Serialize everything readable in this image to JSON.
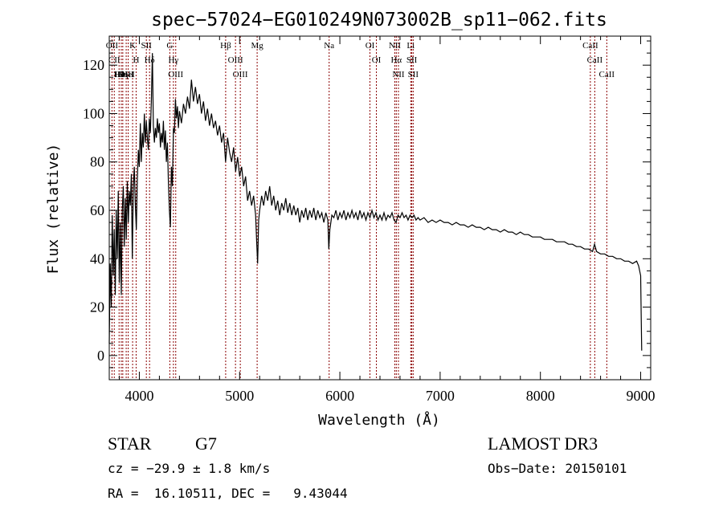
{
  "chart_data": {
    "type": "line",
    "title": "spec−57024−EG010249N073002B_sp11−062.fits",
    "xlabel": "Wavelength (Å)",
    "ylabel": "Flux (relative)",
    "xlim": [
      3700,
      9100
    ],
    "ylim": [
      -10,
      132
    ],
    "xticks": [
      4000,
      5000,
      6000,
      7000,
      8000,
      9000
    ],
    "yticks": [
      0,
      20,
      40,
      60,
      80,
      100,
      120
    ],
    "series": [
      {
        "points": [
          [
            3700,
            5
          ],
          [
            3710,
            38
          ],
          [
            3720,
            20
          ],
          [
            3730,
            58
          ],
          [
            3740,
            33
          ],
          [
            3750,
            52
          ],
          [
            3760,
            25
          ],
          [
            3770,
            60
          ],
          [
            3780,
            40
          ],
          [
            3790,
            68
          ],
          [
            3800,
            30
          ],
          [
            3810,
            55
          ],
          [
            3820,
            25
          ],
          [
            3830,
            60
          ],
          [
            3840,
            70
          ],
          [
            3850,
            45
          ],
          [
            3860,
            65
          ],
          [
            3870,
            48
          ],
          [
            3880,
            72
          ],
          [
            3890,
            55
          ],
          [
            3900,
            68
          ],
          [
            3910,
            62
          ],
          [
            3920,
            75
          ],
          [
            3930,
            40
          ],
          [
            3940,
            70
          ],
          [
            3950,
            78
          ],
          [
            3960,
            62
          ],
          [
            3970,
            52
          ],
          [
            3980,
            72
          ],
          [
            3990,
            85
          ],
          [
            4000,
            78
          ],
          [
            4010,
            96
          ],
          [
            4020,
            80
          ],
          [
            4030,
            92
          ],
          [
            4040,
            86
          ],
          [
            4050,
            100
          ],
          [
            4060,
            88
          ],
          [
            4070,
            97
          ],
          [
            4080,
            90
          ],
          [
            4090,
            85
          ],
          [
            4100,
            98
          ],
          [
            4110,
            92
          ],
          [
            4120,
            105
          ],
          [
            4130,
            125
          ],
          [
            4140,
            95
          ],
          [
            4150,
            88
          ],
          [
            4160,
            94
          ],
          [
            4170,
            90
          ],
          [
            4180,
            98
          ],
          [
            4190,
            92
          ],
          [
            4200,
            96
          ],
          [
            4210,
            86
          ],
          [
            4220,
            92
          ],
          [
            4230,
            88
          ],
          [
            4240,
            97
          ],
          [
            4250,
            85
          ],
          [
            4260,
            93
          ],
          [
            4270,
            80
          ],
          [
            4280,
            88
          ],
          [
            4290,
            72
          ],
          [
            4300,
            60
          ],
          [
            4310,
            53
          ],
          [
            4320,
            78
          ],
          [
            4330,
            70
          ],
          [
            4340,
            94
          ],
          [
            4350,
            92
          ],
          [
            4360,
            106
          ],
          [
            4370,
            98
          ],
          [
            4380,
            103
          ],
          [
            4390,
            94
          ],
          [
            4400,
            101
          ],
          [
            4420,
            96
          ],
          [
            4440,
            104
          ],
          [
            4460,
            100
          ],
          [
            4480,
            107
          ],
          [
            4500,
            102
          ],
          [
            4520,
            114
          ],
          [
            4540,
            105
          ],
          [
            4560,
            111
          ],
          [
            4580,
            104
          ],
          [
            4600,
            108
          ],
          [
            4620,
            100
          ],
          [
            4640,
            105
          ],
          [
            4660,
            97
          ],
          [
            4680,
            102
          ],
          [
            4700,
            95
          ],
          [
            4720,
            100
          ],
          [
            4740,
            94
          ],
          [
            4760,
            97
          ],
          [
            4780,
            91
          ],
          [
            4800,
            95
          ],
          [
            4820,
            88
          ],
          [
            4840,
            92
          ],
          [
            4860,
            80
          ],
          [
            4880,
            90
          ],
          [
            4900,
            84
          ],
          [
            4920,
            80
          ],
          [
            4940,
            86
          ],
          [
            4960,
            76
          ],
          [
            4980,
            82
          ],
          [
            5000,
            74
          ],
          [
            5020,
            78
          ],
          [
            5040,
            70
          ],
          [
            5060,
            74
          ],
          [
            5080,
            64
          ],
          [
            5100,
            68
          ],
          [
            5120,
            62
          ],
          [
            5140,
            66
          ],
          [
            5160,
            58
          ],
          [
            5170,
            47
          ],
          [
            5180,
            38
          ],
          [
            5190,
            56
          ],
          [
            5200,
            60
          ],
          [
            5220,
            66
          ],
          [
            5240,
            62
          ],
          [
            5260,
            68
          ],
          [
            5280,
            64
          ],
          [
            5300,
            70
          ],
          [
            5320,
            62
          ],
          [
            5340,
            66
          ],
          [
            5360,
            60
          ],
          [
            5380,
            64
          ],
          [
            5400,
            58
          ],
          [
            5420,
            63
          ],
          [
            5440,
            60
          ],
          [
            5460,
            65
          ],
          [
            5480,
            59
          ],
          [
            5500,
            63
          ],
          [
            5520,
            58
          ],
          [
            5540,
            62
          ],
          [
            5560,
            58
          ],
          [
            5580,
            61
          ],
          [
            5600,
            55
          ],
          [
            5620,
            60
          ],
          [
            5640,
            57
          ],
          [
            5660,
            61
          ],
          [
            5680,
            56
          ],
          [
            5700,
            60
          ],
          [
            5720,
            57
          ],
          [
            5740,
            61
          ],
          [
            5760,
            56
          ],
          [
            5780,
            60
          ],
          [
            5800,
            57
          ],
          [
            5820,
            59
          ],
          [
            5840,
            55
          ],
          [
            5860,
            59
          ],
          [
            5880,
            56
          ],
          [
            5890,
            44
          ],
          [
            5900,
            52
          ],
          [
            5920,
            58
          ],
          [
            5940,
            57
          ],
          [
            5960,
            60
          ],
          [
            5980,
            56
          ],
          [
            6000,
            59
          ],
          [
            6020,
            57
          ],
          [
            6040,
            60
          ],
          [
            6060,
            56
          ],
          [
            6080,
            59
          ],
          [
            6100,
            57
          ],
          [
            6120,
            60
          ],
          [
            6140,
            57
          ],
          [
            6160,
            59
          ],
          [
            6180,
            56
          ],
          [
            6200,
            60
          ],
          [
            6220,
            57
          ],
          [
            6240,
            59
          ],
          [
            6260,
            56
          ],
          [
            6280,
            59
          ],
          [
            6300,
            57
          ],
          [
            6320,
            60
          ],
          [
            6340,
            57
          ],
          [
            6360,
            59
          ],
          [
            6380,
            56
          ],
          [
            6400,
            58
          ],
          [
            6420,
            56
          ],
          [
            6440,
            59
          ],
          [
            6460,
            56
          ],
          [
            6480,
            58
          ],
          [
            6500,
            57
          ],
          [
            6520,
            59
          ],
          [
            6540,
            56
          ],
          [
            6560,
            55
          ],
          [
            6580,
            58
          ],
          [
            6600,
            57
          ],
          [
            6620,
            59
          ],
          [
            6640,
            57
          ],
          [
            6660,
            58
          ],
          [
            6680,
            56
          ],
          [
            6700,
            58
          ],
          [
            6720,
            57
          ],
          [
            6740,
            58
          ],
          [
            6760,
            56
          ],
          [
            6780,
            57
          ],
          [
            6800,
            56
          ],
          [
            6840,
            57
          ],
          [
            6880,
            55
          ],
          [
            6920,
            56
          ],
          [
            6960,
            55
          ],
          [
            7000,
            56
          ],
          [
            7040,
            55
          ],
          [
            7080,
            55
          ],
          [
            7120,
            54
          ],
          [
            7160,
            55
          ],
          [
            7200,
            54
          ],
          [
            7240,
            54
          ],
          [
            7280,
            53
          ],
          [
            7320,
            54
          ],
          [
            7360,
            53
          ],
          [
            7400,
            53
          ],
          [
            7440,
            52
          ],
          [
            7480,
            53
          ],
          [
            7520,
            52
          ],
          [
            7560,
            52
          ],
          [
            7600,
            51
          ],
          [
            7640,
            52
          ],
          [
            7680,
            51
          ],
          [
            7720,
            51
          ],
          [
            7760,
            50
          ],
          [
            7800,
            51
          ],
          [
            7840,
            50
          ],
          [
            7880,
            50
          ],
          [
            7920,
            49
          ],
          [
            7960,
            49
          ],
          [
            8000,
            49
          ],
          [
            8040,
            48
          ],
          [
            8080,
            48
          ],
          [
            8120,
            48
          ],
          [
            8160,
            47
          ],
          [
            8200,
            47
          ],
          [
            8240,
            47
          ],
          [
            8280,
            46
          ],
          [
            8320,
            46
          ],
          [
            8360,
            45
          ],
          [
            8400,
            45
          ],
          [
            8440,
            44
          ],
          [
            8480,
            44
          ],
          [
            8520,
            43
          ],
          [
            8540,
            46
          ],
          [
            8560,
            43
          ],
          [
            8600,
            42
          ],
          [
            8640,
            42
          ],
          [
            8680,
            41
          ],
          [
            8720,
            41
          ],
          [
            8760,
            40
          ],
          [
            8800,
            40
          ],
          [
            8840,
            39
          ],
          [
            8880,
            39
          ],
          [
            8920,
            38
          ],
          [
            8960,
            39
          ],
          [
            8980,
            37
          ],
          [
            9000,
            33
          ],
          [
            9005,
            18
          ],
          [
            9010,
            2
          ]
        ]
      }
    ],
    "spectral_lines": [
      {
        "wave": 3727,
        "label": "OII"
      },
      {
        "wave": 3750,
        "label": "CII"
      },
      {
        "wave": 3798,
        "label": "Hθ"
      },
      {
        "wave": 3820,
        "label": "HeI"
      },
      {
        "wave": 3835,
        "label": "Hη"
      },
      {
        "wave": 3869,
        "label": "OIII"
      },
      {
        "wave": 3889,
        "label": "HeI"
      },
      {
        "wave": 3933,
        "label": "K"
      },
      {
        "wave": 3968,
        "label": "H"
      },
      {
        "wave": 4070,
        "label": "SII"
      },
      {
        "wave": 4102,
        "label": "Hδ"
      },
      {
        "wave": 4304,
        "label": "G"
      },
      {
        "wave": 4340,
        "label": "Hγ"
      },
      {
        "wave": 4363,
        "label": "OIII"
      },
      {
        "wave": 4861,
        "label": "Hβ"
      },
      {
        "wave": 4959,
        "label": "OIII"
      },
      {
        "wave": 5007,
        "label": "OIII"
      },
      {
        "wave": 5175,
        "label": "Mg"
      },
      {
        "wave": 5893,
        "label": "Na"
      },
      {
        "wave": 6300,
        "label": "OI"
      },
      {
        "wave": 6364,
        "label": "OI"
      },
      {
        "wave": 6548,
        "label": "NII"
      },
      {
        "wave": 6563,
        "label": "Hα"
      },
      {
        "wave": 6584,
        "label": "NII"
      },
      {
        "wave": 6707,
        "label": "Li"
      },
      {
        "wave": 6717,
        "label": "SII"
      },
      {
        "wave": 6731,
        "label": "SII"
      },
      {
        "wave": 8498,
        "label": "CaII"
      },
      {
        "wave": 8542,
        "label": "CaII"
      },
      {
        "wave": 8662,
        "label": "CaII"
      }
    ],
    "grid": false,
    "line_color": "#000000",
    "marker_color": "#8b0000"
  },
  "info": {
    "object_class": "STAR",
    "subclass": "G7",
    "survey": "LAMOST DR3",
    "cz": "cz = −29.9 ± 1.8 km/s",
    "obs_date": "Obs−Date: 20150101",
    "coords": "RA =  16.10511, DEC =   9.43044"
  }
}
